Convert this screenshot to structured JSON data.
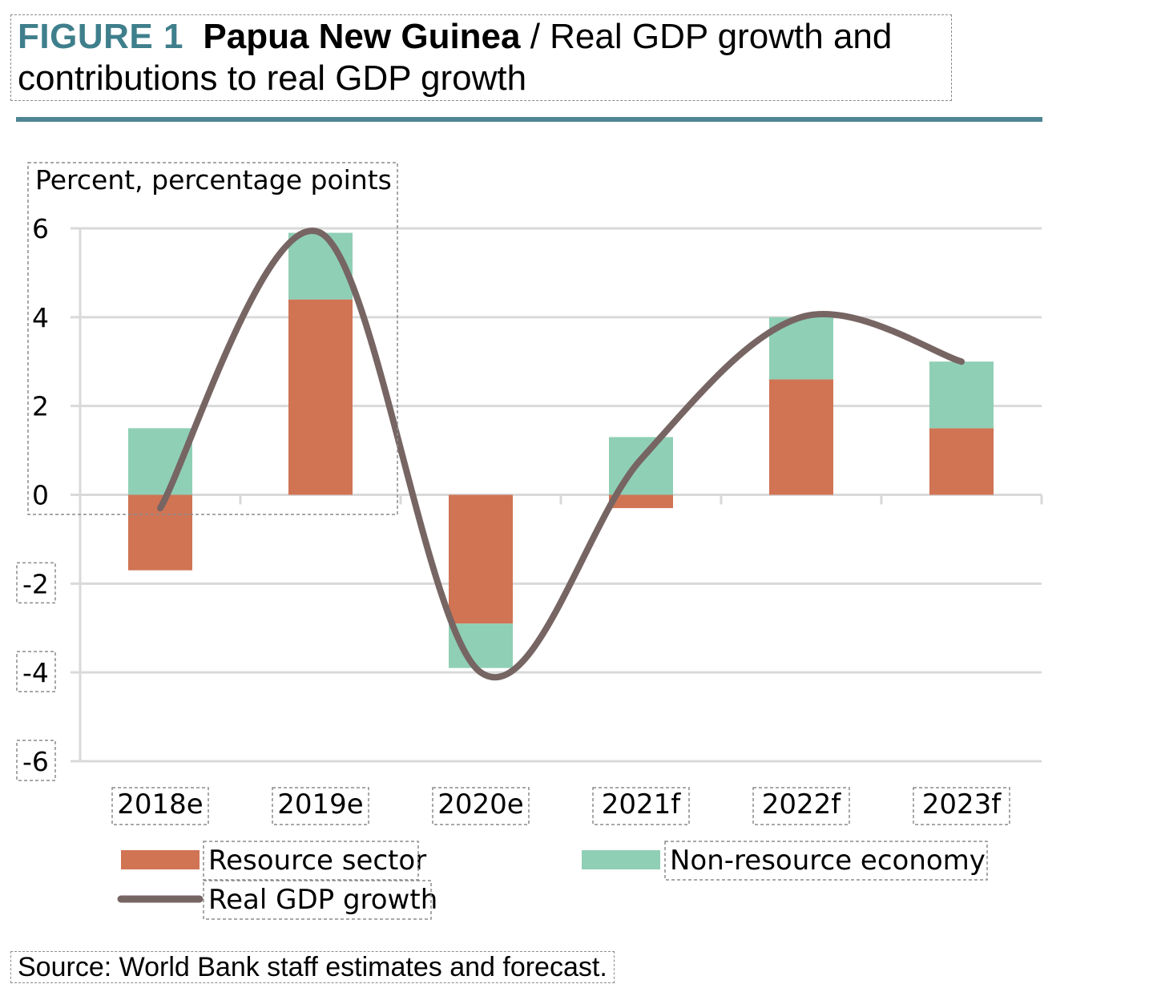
{
  "figure": {
    "label": "FIGURE 1",
    "country": "Papua New Guinea",
    "title_rest_line1": " / Real GDP growth and",
    "title_line2": "contributions to real GDP growth"
  },
  "source": "Source: World Bank staff estimates and forecast.",
  "colors": {
    "resource": "#d07454",
    "nonresource": "#8fcfb6",
    "gdp_line": "#766563",
    "grid": "#d9d9d9",
    "axis": "#d9d9d9",
    "rule": "#4f8592",
    "figure_label": "#3f7f8c"
  },
  "chart_data": {
    "type": "bar",
    "stacked": true,
    "ylabel": "Percent, percentage points",
    "ylim": [
      -6,
      6
    ],
    "yticks": [
      -6,
      -4,
      -2,
      0,
      2,
      4,
      6
    ],
    "grid": true,
    "legend_position": "bottom",
    "categories": [
      "2018e",
      "2019e",
      "2020e",
      "2021f",
      "2022f",
      "2023f"
    ],
    "series": [
      {
        "name": "Resource sector",
        "kind": "bar",
        "color": "#d07454",
        "values": [
          -1.7,
          4.4,
          -2.9,
          -0.3,
          2.6,
          1.5
        ]
      },
      {
        "name": "Non-resource economy",
        "kind": "bar",
        "color": "#8fcfb6",
        "values": [
          1.5,
          1.5,
          -1.0,
          1.3,
          1.4,
          1.5
        ]
      },
      {
        "name": "Real GDP growth",
        "kind": "line",
        "color": "#766563",
        "values": [
          -0.3,
          5.9,
          -4.0,
          0.8,
          4.0,
          3.0
        ]
      }
    ]
  }
}
